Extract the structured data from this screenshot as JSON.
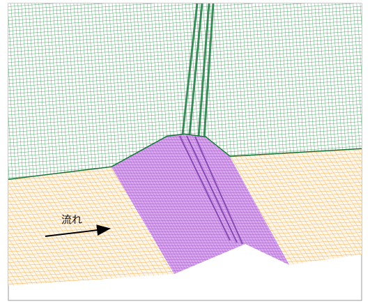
{
  "label": "流れ"
}
